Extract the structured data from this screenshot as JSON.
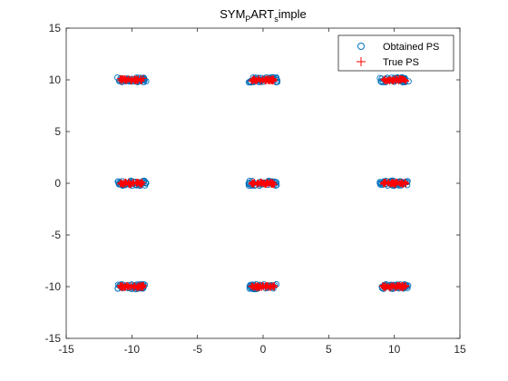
{
  "chart_data": {
    "type": "scatter",
    "title": {
      "main": "SYM",
      "sub1": "P",
      "mid": "ART",
      "sub2": "s",
      "tail": "imple"
    },
    "xlabel": "",
    "ylabel": "",
    "xlim": [
      -15,
      15
    ],
    "ylim": [
      -15,
      15
    ],
    "xticks": [
      -15,
      -10,
      -5,
      0,
      5,
      10,
      15
    ],
    "yticks": [
      -15,
      -10,
      -5,
      0,
      5,
      10,
      15
    ],
    "grid": false,
    "legend_position": "top-right",
    "cluster_centers": [
      {
        "x": -10,
        "y": 10
      },
      {
        "x": 0,
        "y": 10
      },
      {
        "x": 10,
        "y": 10
      },
      {
        "x": -10,
        "y": 0
      },
      {
        "x": 0,
        "y": 0
      },
      {
        "x": 10,
        "y": 0
      },
      {
        "x": -10,
        "y": -10
      },
      {
        "x": 0,
        "y": -10
      },
      {
        "x": 10,
        "y": -10
      }
    ],
    "series": [
      {
        "name": "Obtained PS",
        "marker": "circle",
        "color": "#0072bd",
        "x_spread": 1.1,
        "y_spread": 0.25
      },
      {
        "name": "True PS",
        "marker": "plus",
        "color": "#ff0000",
        "x_spread": 0.9,
        "y_spread": 0.15
      }
    ]
  }
}
